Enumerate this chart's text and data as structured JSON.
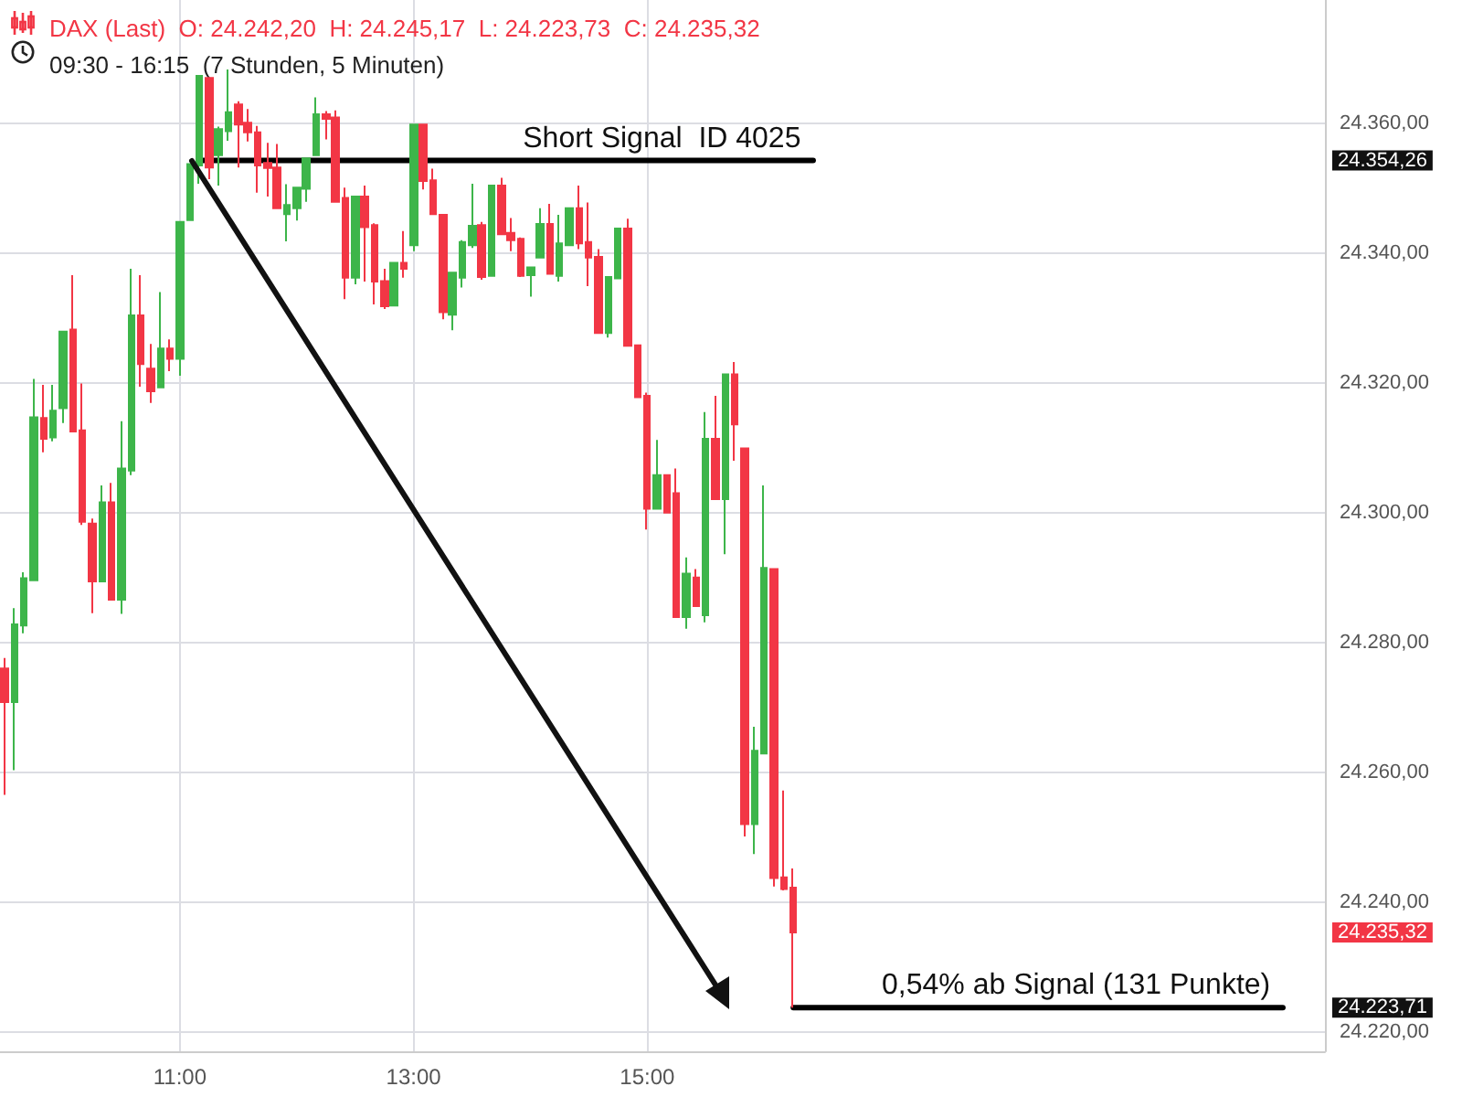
{
  "chart_data": {
    "type": "candlestick",
    "title": "DAX (Last)  O: 24.242,20  H: 24.245,17  L: 24.223,73  C: 24.235,32",
    "subtitle": "09:30 - 16:15  (7 Stunden, 5 Minuten)",
    "x": [
      9.5,
      9.583,
      9.667,
      9.75,
      9.833,
      9.917,
      10,
      10.083,
      10.167,
      10.25,
      10.333,
      10.417,
      10.5,
      10.583,
      10.667,
      10.75,
      10.833,
      10.917,
      11,
      11.083,
      11.167,
      11.25,
      11.333,
      11.417,
      11.5,
      11.583,
      11.667,
      11.75,
      11.833,
      11.917,
      12,
      12.083,
      12.167,
      12.25,
      12.333,
      12.417,
      12.5,
      12.583,
      12.667,
      12.75,
      12.833,
      12.917,
      13,
      13.083,
      13.167,
      13.25,
      13.333,
      13.417,
      13.5,
      13.583,
      13.667,
      13.75,
      13.833,
      13.917,
      14,
      14.083,
      14.167,
      14.25,
      14.333,
      14.417,
      14.5,
      14.583,
      14.667,
      14.75,
      14.833,
      14.917,
      15,
      15.083,
      15.167,
      15.25,
      15.333,
      15.417,
      15.5,
      15.583,
      15.667,
      15.75,
      15.833,
      15.917,
      16,
      16.083,
      16.167,
      16.25
    ],
    "ohlc": [
      [
        24276,
        24277.6,
        24256.5,
        24270.8
      ],
      [
        24270.8,
        24285.3,
        24260.3,
        24282.8
      ],
      [
        24282.6,
        24290.8,
        24281.4,
        24289.9
      ],
      [
        24289.6,
        24320.6,
        24289.6,
        24314.7
      ],
      [
        24314.6,
        24319.7,
        24309.3,
        24311.4
      ],
      [
        24311.6,
        24319.7,
        24311,
        24315.7
      ],
      [
        24316.1,
        24327.9,
        24313.8,
        24327.9
      ],
      [
        24328.2,
        24336.6,
        24312.5,
        24312.5
      ],
      [
        24312.7,
        24319.9,
        24298.1,
        24298.6
      ],
      [
        24298.3,
        24299.1,
        24284.5,
        24289.4
      ],
      [
        24289.4,
        24304.2,
        24289.4,
        24301.6
      ],
      [
        24301.6,
        24304.6,
        24286.6,
        24286.6
      ],
      [
        24286.6,
        24314.1,
        24284.4,
        24306.8
      ],
      [
        24306.5,
        24337.6,
        24305.8,
        24330.4
      ],
      [
        24330.4,
        24336.6,
        24319.4,
        24322.9
      ],
      [
        24322.2,
        24326,
        24316.9,
        24318.7
      ],
      [
        24319.3,
        24334,
        24319.3,
        24325.3
      ],
      [
        24325.3,
        24326.7,
        24321.8,
        24323.7
      ],
      [
        24323.7,
        24344.8,
        24321.1,
        24344.8
      ],
      [
        24345.1,
        24353.7,
        24345.1,
        24353.7
      ],
      [
        24353.5,
        24367.3,
        24350.7,
        24367.3
      ],
      [
        24367,
        24367,
        24351.4,
        24353.2
      ],
      [
        24355.1,
        24359.5,
        24350.4,
        24359.1
      ],
      [
        24358.8,
        24368.3,
        24357.3,
        24361.7
      ],
      [
        24362.9,
        24363.4,
        24353.2,
        24359.8
      ],
      [
        24360.1,
        24362.2,
        24357.2,
        24358.6
      ],
      [
        24358.6,
        24359.6,
        24349.3,
        24353.5
      ],
      [
        24353.9,
        24357,
        24348.7,
        24353.1
      ],
      [
        24353.2,
        24356.8,
        24346.9,
        24346.9
      ],
      [
        24346,
        24350.6,
        24341.8,
        24347.4
      ],
      [
        24346.9,
        24350.1,
        24345,
        24350.1
      ],
      [
        24349.9,
        24354.6,
        24347.9,
        24354.6
      ],
      [
        24355.1,
        24364,
        24355.1,
        24361.4
      ],
      [
        24361.4,
        24361.9,
        24357.5,
        24360.7
      ],
      [
        24360.9,
        24362,
        24347.9,
        24347.9
      ],
      [
        24348.5,
        24350.1,
        24332.9,
        24336.2
      ],
      [
        24336.2,
        24348.7,
        24335.2,
        24348.7
      ],
      [
        24348.7,
        24350.4,
        24335.6,
        24344
      ],
      [
        24344.3,
        24344.6,
        24332.1,
        24335.6
      ],
      [
        24335.7,
        24337.6,
        24331.4,
        24331.8
      ],
      [
        24331.9,
        24338.5,
        24331.9,
        24338.5
      ],
      [
        24338.5,
        24343.4,
        24336.2,
        24337.6
      ],
      [
        24341.2,
        24359.8,
        24340.3,
        24359.8
      ],
      [
        24359.8,
        24359.8,
        24349.8,
        24351.1
      ],
      [
        24351.2,
        24353,
        24346,
        24346
      ],
      [
        24345.9,
        24345.9,
        24329.8,
        24330.9
      ],
      [
        24330.5,
        24337,
        24328.1,
        24337
      ],
      [
        24336.2,
        24342,
        24334.7,
        24341.7
      ],
      [
        24341.2,
        24350.7,
        24340.8,
        24344.2
      ],
      [
        24344.3,
        24344.8,
        24335.9,
        24336.3
      ],
      [
        24336.5,
        24350.4,
        24336.5,
        24350.4
      ],
      [
        24350.4,
        24351.6,
        24342.9,
        24342.9
      ],
      [
        24343.1,
        24345.4,
        24340.3,
        24342
      ],
      [
        24342.2,
        24342.4,
        24336.3,
        24336.5
      ],
      [
        24336.6,
        24337.8,
        24333.3,
        24337.8
      ],
      [
        24339.3,
        24346.9,
        24339.3,
        24344.5
      ],
      [
        24344.5,
        24347.6,
        24336.8,
        24336.8
      ],
      [
        24336.5,
        24345.9,
        24335.6,
        24341.5
      ],
      [
        24341.2,
        24346.9,
        24341.2,
        24346.9
      ],
      [
        24346.9,
        24350.4,
        24340.6,
        24341.5
      ],
      [
        24341.7,
        24347.8,
        24334.9,
        24339.3
      ],
      [
        24339.4,
        24340.6,
        24327.7,
        24327.7
      ],
      [
        24327.7,
        24336.3,
        24327,
        24336.3
      ],
      [
        24336.1,
        24343.8,
        24336.1,
        24343.8
      ],
      [
        24343.8,
        24345.3,
        24325.7,
        24325.7
      ],
      [
        24325.8,
        24325.8,
        24317.8,
        24317.8
      ],
      [
        24318,
        24318.5,
        24297.4,
        24300.6
      ],
      [
        24300.6,
        24311.2,
        24300.6,
        24305.8
      ],
      [
        24305.8,
        24305.8,
        24300,
        24300
      ],
      [
        24303,
        24306.8,
        24283.9,
        24283.9
      ],
      [
        24283.9,
        24293.1,
        24282.1,
        24290.6
      ],
      [
        24290,
        24291.3,
        24285.6,
        24285.6
      ],
      [
        24284.2,
        24315.5,
        24283.1,
        24311.4
      ],
      [
        24311.4,
        24318,
        24302.1,
        24302.1
      ],
      [
        24302.1,
        24321.3,
        24293.6,
        24321.3
      ],
      [
        24321.3,
        24323.2,
        24308,
        24313.6
      ],
      [
        24309.9,
        24309.9,
        24250.1,
        24252
      ],
      [
        24252,
        24267,
        24247.4,
        24263.3
      ],
      [
        24262.9,
        24304.2,
        24262.9,
        24291.5
      ],
      [
        24291.3,
        24291.3,
        24242.4,
        24243.7
      ],
      [
        24243.8,
        24257.2,
        24241.8,
        24242
      ],
      [
        24242.2,
        24245.17,
        24223.73,
        24235.32
      ]
    ],
    "colors": [
      "#f23645",
      "#3db54a",
      "#3db54a",
      "#3db54a",
      "#f23645",
      "#3db54a",
      "#3db54a",
      "#f23645",
      "#f23645",
      "#f23645",
      "#3db54a",
      "#f23645",
      "#3db54a",
      "#3db54a",
      "#f23645",
      "#f23645",
      "#3db54a",
      "#f23645",
      "#3db54a",
      "#3db54a",
      "#3db54a",
      "#f23645",
      "#3db54a",
      "#3db54a",
      "#f23645",
      "#f23645",
      "#f23645",
      "#f23645",
      "#f23645",
      "#3db54a",
      "#3db54a",
      "#3db54a",
      "#3db54a",
      "#f23645",
      "#f23645",
      "#f23645",
      "#3db54a",
      "#f23645",
      "#f23645",
      "#f23645",
      "#3db54a",
      "#f23645",
      "#3db54a",
      "#f23645",
      "#f23645",
      "#f23645",
      "#3db54a",
      "#3db54a",
      "#3db54a",
      "#f23645",
      "#3db54a",
      "#f23645",
      "#f23645",
      "#f23645",
      "#3db54a",
      "#3db54a",
      "#f23645",
      "#3db54a",
      "#3db54a",
      "#f23645",
      "#f23645",
      "#f23645",
      "#3db54a",
      "#3db54a",
      "#f23645",
      "#f23645",
      "#f23645",
      "#3db54a",
      "#f23645",
      "#f23645",
      "#3db54a",
      "#f23645",
      "#3db54a",
      "#f23645",
      "#3db54a",
      "#f23645",
      "#f23645",
      "#3db54a",
      "#3db54a",
      "#f23645",
      "#f23645",
      "#f23645"
    ],
    "series": [
      {
        "type": "line",
        "color": "#000000",
        "x": [
          11.167,
          16.42
        ],
        "values": [
          24354.26,
          24354.26
        ]
      },
      {
        "type": "line",
        "color": "#000000",
        "x": [
          16.25,
          20.44
        ],
        "values": [
          24223.71,
          24223.71
        ]
      }
    ],
    "annotations": [
      {
        "text": "Short Signal  ID 4025",
        "x": 15.125,
        "y": 24354.26
      },
      {
        "text": "0,54% ab Signal (131 Punkte)",
        "x": 18.67,
        "y": 24223.71
      }
    ],
    "xlim": [
      9.46,
      20.8
    ],
    "xticks": [
      {
        "value": 11,
        "label": "11:00"
      },
      {
        "value": 13,
        "label": "13:00"
      },
      {
        "value": 15,
        "label": "15:00"
      }
    ],
    "ylim": [
      24217,
      24379
    ],
    "yticks": [
      {
        "value": 24220,
        "label": "24.220,00"
      },
      {
        "value": 24240,
        "label": "24.240,00"
      },
      {
        "value": 24260,
        "label": "24.260,00"
      },
      {
        "value": 24280,
        "label": "24.280,00"
      },
      {
        "value": 24300,
        "label": "24.300,00"
      },
      {
        "value": 24320,
        "label": "24.320,00"
      },
      {
        "value": 24340,
        "label": "24.340,00"
      },
      {
        "value": 24360,
        "label": "24.360,00"
      },
      {
        "value": 24354.26,
        "label": "24.354,26"
      },
      {
        "value": 24235.32,
        "label": "24.235,32"
      },
      {
        "value": 24223.71,
        "label": "24.223,71"
      }
    ],
    "grid": true
  }
}
